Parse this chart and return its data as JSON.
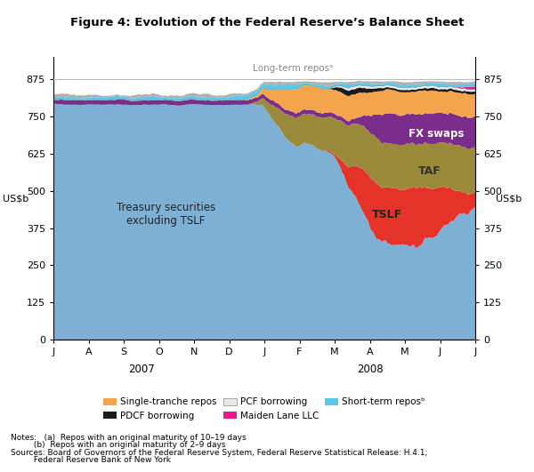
{
  "title": "Figure 4: Evolution of the Federal Reserve’s Balance Sheet",
  "ylabel_left": "US$b",
  "ylabel_right": "US$b",
  "yticks": [
    0,
    125,
    250,
    375,
    500,
    625,
    750,
    875
  ],
  "ylim": [
    0,
    950
  ],
  "xlabel_2007": "2007",
  "xlabel_2008": "2008",
  "xtick_labels": [
    "J",
    "A",
    "S",
    "O",
    "N",
    "D",
    "J",
    "F",
    "M",
    "A",
    "M",
    "J",
    "J"
  ],
  "colors": {
    "treasury": "#7eb0d5",
    "tslf": "#e63329",
    "taf": "#9b8a3a",
    "fx_swaps": "#7b2d8b",
    "single_tranche": "#f4a44a",
    "pdcf": "#1a1a1a",
    "pcf": "#e8e8e8",
    "maiden_lane": "#e8198b",
    "short_term_repos": "#5ac8e8",
    "long_term_repos": "#b0b0b0"
  },
  "notes": [
    "Notes:   (a)  Repos with an original maturity of 10–19 days",
    "         (b)  Repos with an original maturity of 2–9 days",
    "Sources: Board of Governors of the Federal Reserve System, Federal Reserve Statistical Release: H.4.1;",
    "         Federal Reserve Bank of New York"
  ],
  "n_points": 260
}
